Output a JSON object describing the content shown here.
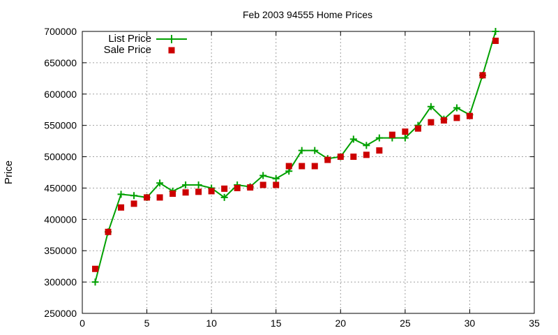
{
  "chart_data": {
    "type": "line",
    "title": "Feb 2003 94555 Home Prices",
    "xlabel": "",
    "ylabel": "Price",
    "xlim": [
      0,
      35
    ],
    "ylim": [
      250000,
      700000
    ],
    "xticks": [
      0,
      5,
      10,
      15,
      20,
      25,
      30,
      35
    ],
    "yticks": [
      250000,
      300000,
      350000,
      400000,
      450000,
      500000,
      550000,
      600000,
      650000,
      700000
    ],
    "grid": true,
    "legend_position": "top-left",
    "colors": {
      "list": "#00a000",
      "sale": "#cc0000"
    },
    "series": [
      {
        "name": "List Price",
        "style": "line-plus",
        "x": [
          1,
          2,
          3,
          4,
          5,
          6,
          7,
          8,
          9,
          10,
          11,
          12,
          13,
          14,
          15,
          16,
          17,
          18,
          19,
          20,
          21,
          22,
          23,
          24,
          25,
          26,
          27,
          28,
          29,
          30,
          31,
          32
        ],
        "values": [
          300000,
          380000,
          440000,
          438000,
          435000,
          458000,
          445000,
          455000,
          455000,
          450000,
          435000,
          455000,
          452000,
          470000,
          465000,
          477000,
          510000,
          510000,
          497000,
          500000,
          528000,
          518000,
          530000,
          530000,
          530000,
          550000,
          580000,
          560000,
          578000,
          567000,
          630000,
          700000
        ]
      },
      {
        "name": "Sale Price",
        "style": "square-markers",
        "x": [
          1,
          2,
          3,
          4,
          5,
          6,
          7,
          8,
          9,
          10,
          11,
          12,
          13,
          14,
          15,
          16,
          17,
          18,
          19,
          20,
          21,
          22,
          23,
          24,
          25,
          26,
          27,
          28,
          29,
          30,
          31,
          32
        ],
        "values": [
          321000,
          380000,
          419000,
          425000,
          435000,
          435000,
          441000,
          443000,
          444000,
          445000,
          449000,
          450000,
          451000,
          455000,
          455000,
          485000,
          485000,
          485000,
          495000,
          500000,
          500000,
          503000,
          510000,
          535000,
          540000,
          545000,
          555000,
          558000,
          562000,
          565000,
          630000,
          685000
        ]
      }
    ]
  }
}
